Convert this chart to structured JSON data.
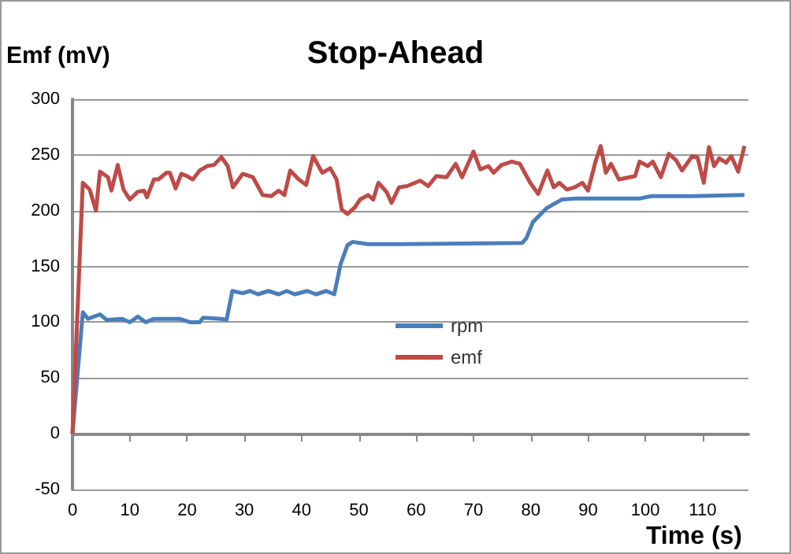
{
  "chart_data": {
    "type": "line",
    "title": "Stop-Ahead",
    "xlabel": "Time (s)",
    "ylabel": "Emf (mV)",
    "xlim": [
      0,
      118
    ],
    "xticks": [
      0,
      10,
      20,
      30,
      40,
      50,
      60,
      70,
      80,
      90,
      100,
      110
    ],
    "ylim": [
      -50,
      300
    ],
    "yticks": [
      -50,
      0,
      50,
      100,
      150,
      200,
      250,
      300
    ],
    "grid": "y",
    "legend": "right",
    "marker": "none",
    "line_style": "solid",
    "series": [
      {
        "name": "rpm",
        "color": "#4a7ebb",
        "x": [
          0,
          1.8,
          2.7,
          4.8,
          6,
          8.7,
          10,
          11.4,
          12.8,
          14.2,
          18.7,
          20.5,
          22.2,
          22.8,
          26,
          26.9,
          27.9,
          29.7,
          31,
          32.4,
          34.2,
          36,
          37.4,
          38.8,
          41,
          42.5,
          44.3,
          45.7,
          46.8,
          48,
          48.9,
          51.6,
          57,
          78.5,
          79.2,
          80.4,
          82.7,
          85.4,
          88.2,
          99.1,
          101,
          108.2,
          117.3
        ],
        "values": [
          0,
          109,
          103,
          107,
          102,
          103,
          100,
          105,
          100,
          103,
          103,
          100,
          100,
          104,
          103,
          102,
          128,
          126,
          128,
          125,
          128,
          125,
          128,
          125,
          128,
          125,
          128,
          125,
          152,
          169,
          172,
          170,
          170,
          171,
          175,
          190,
          202,
          210,
          211,
          211,
          213,
          213,
          214
        ]
      },
      {
        "name": "emf",
        "color": "#be4b48",
        "x": [
          0,
          1.8,
          3,
          4.1,
          4.8,
          6.2,
          6.8,
          7.9,
          8.9,
          10,
          11.4,
          12.5,
          13,
          14.2,
          15,
          16.4,
          17,
          18,
          19,
          20,
          21,
          22.2,
          23.5,
          24.7,
          26,
          27.1,
          28,
          29.7,
          31.5,
          33.2,
          34.7,
          36,
          37,
          38,
          39.5,
          40.8,
          42,
          43.6,
          45,
          46.1,
          47,
          48,
          49.3,
          50.2,
          51.6,
          52.5,
          53.4,
          54.8,
          55.7,
          57,
          58.4,
          60.7,
          62.1,
          63.5,
          65.3,
          66.9,
          68,
          70,
          71.2,
          72.6,
          73.5,
          74.9,
          76.7,
          78.1,
          79.9,
          81.3,
          82.9,
          84,
          85,
          86.3,
          87.7,
          89,
          90,
          91.3,
          92.2,
          93.1,
          94,
          95.4,
          98.2,
          99,
          100.4,
          101.3,
          102.7,
          104.1,
          105.4,
          106.4,
          108.2,
          109.1,
          110.2,
          111.1,
          112,
          112.9,
          114.1,
          115,
          116.2,
          117.3
        ],
        "values": [
          0,
          225,
          219,
          200,
          235,
          230,
          218,
          241,
          219,
          210,
          217,
          218,
          212,
          228,
          228,
          234,
          234,
          220,
          233,
          231,
          228,
          236,
          240,
          241,
          248,
          240,
          221,
          233,
          230,
          214,
          213,
          218,
          214,
          236,
          228,
          223,
          249,
          234,
          238,
          228,
          201,
          197,
          203,
          210,
          214,
          210,
          225,
          217,
          207,
          221,
          222,
          227,
          222,
          231,
          230,
          242,
          230,
          253,
          237,
          240,
          234,
          241,
          244,
          242,
          225,
          215,
          236,
          221,
          225,
          219,
          221,
          225,
          218,
          244,
          258,
          234,
          242,
          228,
          231,
          244,
          240,
          244,
          230,
          251,
          245,
          236,
          249,
          248,
          225,
          257,
          240,
          247,
          243,
          249,
          235,
          258
        ]
      }
    ]
  }
}
